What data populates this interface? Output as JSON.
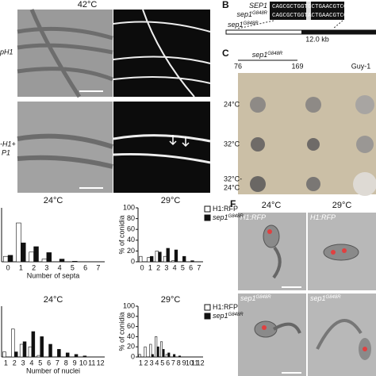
{
  "panel_a": {
    "temperature": "42°C",
    "row_labels": [
      "pH1",
      "-H1+",
      "P1"
    ]
  },
  "panel_b": {
    "letter": "B",
    "seq_labels": [
      {
        "base": "SEP1"
      },
      {
        "base": "sep1",
        "sup": "G848R"
      }
    ],
    "sequences": [
      "CAGCGCTGGTGCTGAACGTCC",
      "CAGCGCTGGTACTGAACGTCC"
    ],
    "locus": {
      "base": "sep1",
      "sup": "G848R"
    },
    "size": "12.0 kb"
  },
  "panel_c": {
    "letter": "C",
    "strains": [
      "76",
      "169",
      "Guy-1"
    ],
    "strain_group": {
      "base": "sep1",
      "sup": "G848R"
    },
    "conditions": [
      "24°C",
      "32°C",
      "32°C-",
      "24°C"
    ]
  },
  "panel_d": {
    "legend": [
      {
        "label": "H1:RFP",
        "color": "#ffffff"
      },
      {
        "label": "sep1",
        "sup": "G848R",
        "color": "#111111"
      }
    ],
    "ylabel": "% of conidia",
    "xlabel": "Number of septa",
    "charts": [
      {
        "type": "bar",
        "title": "24°C",
        "categories": [
          "0",
          "1",
          "2",
          "3",
          "4",
          "5",
          "6",
          "7"
        ],
        "ylim": [
          0,
          100
        ],
        "series": [
          {
            "values": [
              10,
              72,
              18,
              5,
              0,
              0,
              0,
              0
            ]
          },
          {
            "values": [
              12,
              35,
              28,
              17,
              5,
              1,
              0,
              0
            ]
          }
        ]
      },
      {
        "type": "bar",
        "title": "29°C",
        "categories": [
          "0",
          "1",
          "2",
          "3",
          "4",
          "5",
          "6",
          "7"
        ],
        "ylim": [
          0,
          100
        ],
        "yticks": [
          0,
          20,
          40,
          60,
          80,
          100
        ],
        "series": [
          {
            "values": [
              10,
              8,
              20,
              10,
              2,
              0,
              0,
              0
            ]
          },
          {
            "values": [
              0,
              10,
              18,
              25,
              22,
              10,
              2,
              0
            ]
          }
        ]
      }
    ]
  },
  "panel_e": {
    "legend": [
      {
        "label": "H1:RFP",
        "color": "#ffffff"
      },
      {
        "label": "sep1",
        "sup": "G848R",
        "color": "#111111"
      }
    ],
    "ylabel": "% of conidia",
    "xlabel": "Number of nuclei",
    "charts": [
      {
        "type": "bar",
        "title": "24°C",
        "categories": [
          "1",
          "2",
          "3",
          "4",
          "5",
          "6",
          "7",
          "8",
          "9",
          "10",
          "11",
          "12"
        ],
        "ylim": [
          0,
          100
        ],
        "series": [
          {
            "values": [
              10,
              55,
              25,
              20,
              3,
              0,
              0,
              0,
              0,
              0,
              0,
              0
            ]
          },
          {
            "values": [
              0,
              10,
              30,
              50,
              40,
              25,
              15,
              8,
              5,
              2,
              0,
              0
            ]
          }
        ]
      },
      {
        "type": "bar",
        "title": "29°C",
        "categories": [
          "1",
          "2",
          "3",
          "4",
          "5",
          "6",
          "7",
          "8",
          "9",
          "10",
          "11",
          "12"
        ],
        "ylim": [
          0,
          100
        ],
        "yticks": [
          0,
          20,
          40,
          60,
          80,
          100
        ],
        "series": [
          {
            "values": [
              5,
              20,
              25,
              40,
              30,
              5,
              0,
              0,
              0,
              0,
              0,
              0
            ]
          },
          {
            "values": [
              0,
              0,
              5,
              20,
              15,
              8,
              5,
              2,
              0,
              0,
              0,
              0
            ]
          }
        ]
      }
    ]
  },
  "panel_f": {
    "letter": "F",
    "temperatures": [
      "24°C",
      "29°C"
    ],
    "image_labels": [
      {
        "base": "H1:RFP"
      },
      {
        "base": "H1:RFP"
      },
      {
        "base": "sep1",
        "sup": "G848R"
      },
      {
        "base": "sep1",
        "sup": "G848R"
      }
    ]
  }
}
